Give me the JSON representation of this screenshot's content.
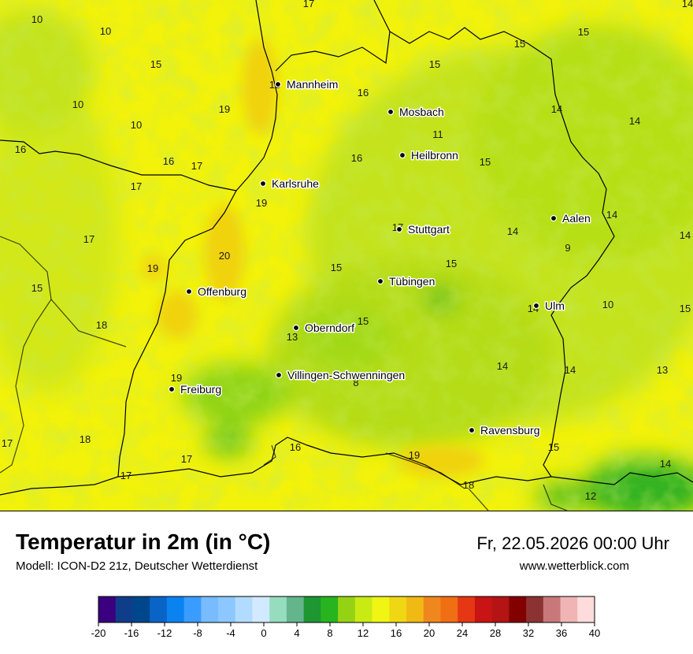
{
  "colors": {
    "land_base": "#f2f20a",
    "mid_green": "#c4e31a",
    "green": "#8fd412",
    "deep_green": "#34b321",
    "warm": "#f0d20e",
    "border": "#000000",
    "city_dot": "#000000"
  },
  "title": "Temperatur in 2m (in °C)",
  "model": "Modell: ICON-D2 21z, Deutscher Wetterdienst",
  "datetime": "Fr, 22.05.2026 00:00 Uhr",
  "website": "www.wetterblick.com",
  "cities": [
    {
      "name": "Mannheim"
    },
    {
      "name": "Mosbach"
    },
    {
      "name": "Heilbronn"
    },
    {
      "name": "Karlsruhe"
    },
    {
      "name": "Aalen"
    },
    {
      "name": "Stuttgart"
    },
    {
      "name": "Tübingen"
    },
    {
      "name": "Offenburg"
    },
    {
      "name": "Ulm"
    },
    {
      "name": "Oberndorf"
    },
    {
      "name": "Villingen-Schwenningen"
    },
    {
      "name": "Freiburg"
    },
    {
      "name": "Ravensburg"
    }
  ],
  "temperature_labels": [
    "17",
    "14",
    "10",
    "10",
    "15",
    "15",
    "15",
    "15",
    "18",
    "10",
    "19",
    "16",
    "14",
    "14",
    "10",
    "11",
    "16",
    "16",
    "17",
    "15",
    "17",
    "16",
    "19",
    "17",
    "14",
    "14",
    "17",
    "14",
    "20",
    "15",
    "9",
    "19",
    "15",
    "15",
    "14",
    "10",
    "15",
    "18",
    "15",
    "13",
    "14",
    "14",
    "13",
    "19",
    "8",
    "18",
    "17",
    "16",
    "19",
    "17",
    "15",
    "17",
    "18",
    "14",
    "12",
    "17"
  ],
  "legend": {
    "ticks": [
      "-20",
      "-16",
      "-12",
      "-8",
      "-4",
      "0",
      "4",
      "8",
      "12",
      "16",
      "20",
      "24",
      "28",
      "32",
      "36",
      "40"
    ],
    "colors": [
      "#3a0080",
      "#0f3d8a",
      "#00468c",
      "#0a64c8",
      "#0a82f0",
      "#3a9cff",
      "#78bcff",
      "#8cc8ff",
      "#b2dcff",
      "#d2eaff",
      "#96dcbe",
      "#64b48c",
      "#1e9632",
      "#28b41e",
      "#96d214",
      "#c8eb14",
      "#f0f514",
      "#f0d714",
      "#f0b914",
      "#f0871e",
      "#f06e14",
      "#e63714",
      "#c81414",
      "#b41414",
      "#820000",
      "#8c3232",
      "#c87878",
      "#f0b4b4",
      "#ffdcdc"
    ]
  }
}
